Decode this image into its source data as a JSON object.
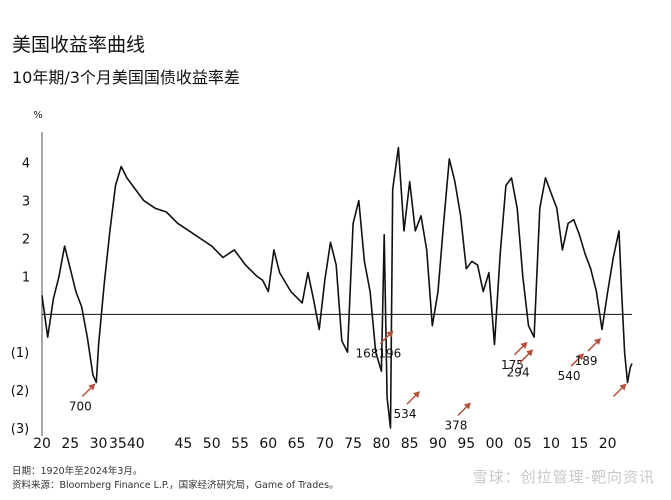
{
  "title": "美国收益率曲线",
  "subtitle": "10年期/3个月美国国债收益率差",
  "footer": {
    "date_note": "日期：1920年至2024年3月。",
    "source_note": "资料来源：Bloomberg Finance L.P.，国家经济研究局，Game of Trades。"
  },
  "watermark": "雪球：创拉管理-靶向资讯",
  "colors": {
    "line": "#111111",
    "arrow": "#b5503a",
    "zero_line": "#111111"
  },
  "chart_data": {
    "type": "line",
    "title": "美国收益率曲线",
    "subtitle": "10年期/3个月美国国债收益率差",
    "ylabel": "%",
    "ylim": [
      -3,
      4.6
    ],
    "xlim": [
      1920,
      2024.3
    ],
    "y_ticks": [
      {
        "value": 4,
        "label": "4"
      },
      {
        "value": 3,
        "label": "3"
      },
      {
        "value": 2,
        "label": "2"
      },
      {
        "value": 1,
        "label": "1"
      },
      {
        "value": -1,
        "label": "(1)"
      },
      {
        "value": -2,
        "label": "(2)"
      },
      {
        "value": -3,
        "label": "(3)"
      }
    ],
    "x_ticks": [
      {
        "value": 1920,
        "label": "20"
      },
      {
        "value": 1925,
        "label": "25"
      },
      {
        "value": 1930,
        "label": "30"
      },
      {
        "value": 1935,
        "label": "3540"
      },
      {
        "value": 1945,
        "label": "45"
      },
      {
        "value": 1950,
        "label": "50"
      },
      {
        "value": 1955,
        "label": "55"
      },
      {
        "value": 1960,
        "label": "60"
      },
      {
        "value": 1965,
        "label": "65"
      },
      {
        "value": 1970,
        "label": "70"
      },
      {
        "value": 1975,
        "label": "75"
      },
      {
        "value": 1980,
        "label": "80"
      },
      {
        "value": 1985,
        "label": "85"
      },
      {
        "value": 1990,
        "label": "90"
      },
      {
        "value": 1995,
        "label": "95"
      },
      {
        "value": 2000,
        "label": "00"
      },
      {
        "value": 2005,
        "label": "05"
      },
      {
        "value": 2010,
        "label": "10"
      },
      {
        "value": 2015,
        "label": "15"
      },
      {
        "value": 2020,
        "label": "20"
      }
    ],
    "series": [
      {
        "values": [
          [
            1920,
            0.5
          ],
          [
            1921,
            -0.6
          ],
          [
            1922,
            0.4
          ],
          [
            1923,
            1.0
          ],
          [
            1924,
            1.8
          ],
          [
            1925,
            1.2
          ],
          [
            1926,
            0.6
          ],
          [
            1927,
            0.2
          ],
          [
            1928,
            -0.6
          ],
          [
            1929,
            -1.6
          ],
          [
            1929.6,
            -1.8
          ],
          [
            1930,
            -0.8
          ],
          [
            1931,
            0.8
          ],
          [
            1932,
            2.2
          ],
          [
            1933,
            3.4
          ],
          [
            1934,
            3.9
          ],
          [
            1935,
            3.6
          ],
          [
            1936,
            3.4
          ],
          [
            1938,
            3.0
          ],
          [
            1940,
            2.8
          ],
          [
            1942,
            2.7
          ],
          [
            1944,
            2.4
          ],
          [
            1946,
            2.2
          ],
          [
            1948,
            2.0
          ],
          [
            1950,
            1.8
          ],
          [
            1952,
            1.5
          ],
          [
            1954,
            1.7
          ],
          [
            1956,
            1.3
          ],
          [
            1958,
            1.0
          ],
          [
            1959,
            0.9
          ],
          [
            1960,
            0.6
          ],
          [
            1961,
            1.7
          ],
          [
            1962,
            1.1
          ],
          [
            1964,
            0.6
          ],
          [
            1966,
            0.3
          ],
          [
            1967,
            1.1
          ],
          [
            1968,
            0.4
          ],
          [
            1969,
            -0.4
          ],
          [
            1970,
            0.9
          ],
          [
            1971,
            1.9
          ],
          [
            1972,
            1.3
          ],
          [
            1973,
            -0.7
          ],
          [
            1974,
            -1.0
          ],
          [
            1975,
            2.4
          ],
          [
            1976,
            3.0
          ],
          [
            1977,
            1.4
          ],
          [
            1978,
            0.6
          ],
          [
            1979,
            -1.0
          ],
          [
            1980,
            -1.5
          ],
          [
            1980.5,
            2.1
          ],
          [
            1981,
            -2.2
          ],
          [
            1981.6,
            -3.0
          ],
          [
            1982,
            3.3
          ],
          [
            1983,
            4.4
          ],
          [
            1984,
            2.2
          ],
          [
            1985,
            3.5
          ],
          [
            1986,
            2.2
          ],
          [
            1987,
            2.6
          ],
          [
            1988,
            1.7
          ],
          [
            1989,
            -0.3
          ],
          [
            1990,
            0.6
          ],
          [
            1991,
            2.4
          ],
          [
            1992,
            4.1
          ],
          [
            1993,
            3.5
          ],
          [
            1994,
            2.6
          ],
          [
            1995,
            1.2
          ],
          [
            1996,
            1.4
          ],
          [
            1997,
            1.3
          ],
          [
            1998,
            0.6
          ],
          [
            1999,
            1.1
          ],
          [
            2000,
            -0.8
          ],
          [
            2001,
            1.6
          ],
          [
            2002,
            3.4
          ],
          [
            2003,
            3.6
          ],
          [
            2004,
            2.8
          ],
          [
            2005,
            1.0
          ],
          [
            2006,
            -0.3
          ],
          [
            2007,
            -0.6
          ],
          [
            2008,
            2.8
          ],
          [
            2009,
            3.6
          ],
          [
            2010,
            3.2
          ],
          [
            2011,
            2.8
          ],
          [
            2012,
            1.7
          ],
          [
            2013,
            2.4
          ],
          [
            2014,
            2.5
          ],
          [
            2015,
            2.1
          ],
          [
            2016,
            1.6
          ],
          [
            2017,
            1.2
          ],
          [
            2018,
            0.6
          ],
          [
            2019,
            -0.4
          ],
          [
            2020,
            0.6
          ],
          [
            2021,
            1.5
          ],
          [
            2022,
            2.2
          ],
          [
            2022.5,
            0.5
          ],
          [
            2023,
            -1.0
          ],
          [
            2023.5,
            -1.8
          ],
          [
            2024,
            -1.4
          ],
          [
            2024.3,
            -1.3
          ]
        ]
      }
    ],
    "annotations": [
      {
        "label": "700",
        "x": 1929.6,
        "y": -1.8
      },
      {
        "label": "168196",
        "x": 1982.3,
        "y": -0.4
      },
      {
        "label": "534",
        "x": 1987,
        "y": -2.0
      },
      {
        "label": "378",
        "x": 1996,
        "y": -2.3
      },
      {
        "label": "175",
        "x": 2006,
        "y": -0.7
      },
      {
        "label": "294",
        "x": 2007,
        "y": -0.9
      },
      {
        "label": "540",
        "x": 2016,
        "y": -1.0
      },
      {
        "label": "189",
        "x": 2019,
        "y": -0.6
      },
      {
        "label": "",
        "x": 2023.5,
        "y": -1.8
      }
    ]
  }
}
